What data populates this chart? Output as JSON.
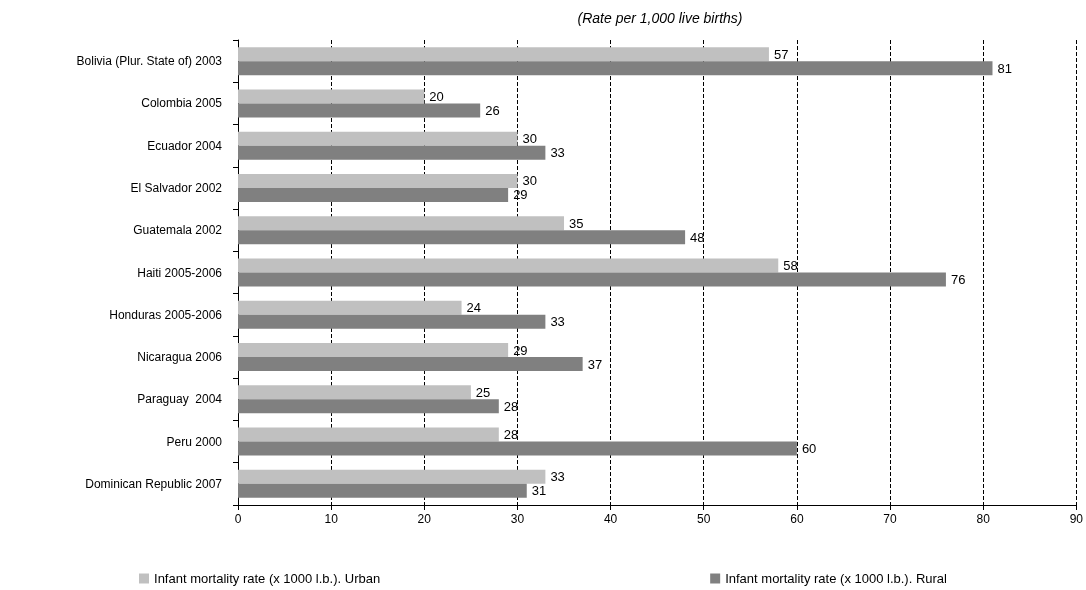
{
  "chart_data": {
    "type": "bar",
    "orientation": "horizontal",
    "title": "(Rate per 1,000 live births)",
    "categories": [
      "Bolivia (Plur. State of) 2003",
      "Colombia 2005",
      "Ecuador 2004",
      "El Salvador 2002",
      "Guatemala 2002",
      "Haiti 2005-2006",
      "Honduras 2005-2006",
      "Nicaragua 2006",
      "Paraguay  2004",
      "Peru 2000",
      "Dominican Republic 2007"
    ],
    "series": [
      {
        "name": "Infant mortality rate (x 1000 l.b.). Urban",
        "color": "#c0c0c0",
        "values": [
          57,
          20,
          30,
          30,
          35,
          58,
          24,
          29,
          25,
          28,
          33
        ]
      },
      {
        "name": "Infant mortality rate (x 1000 l.b.). Rural",
        "color": "#808080",
        "values": [
          81,
          26,
          33,
          29,
          48,
          76,
          33,
          37,
          28,
          60,
          31
        ]
      }
    ],
    "xlim": [
      0,
      90
    ],
    "xticks": [
      0,
      10,
      20,
      30,
      40,
      50,
      60,
      70,
      80,
      90
    ],
    "grid": "x",
    "legend": "bottom",
    "data_labels": true
  }
}
